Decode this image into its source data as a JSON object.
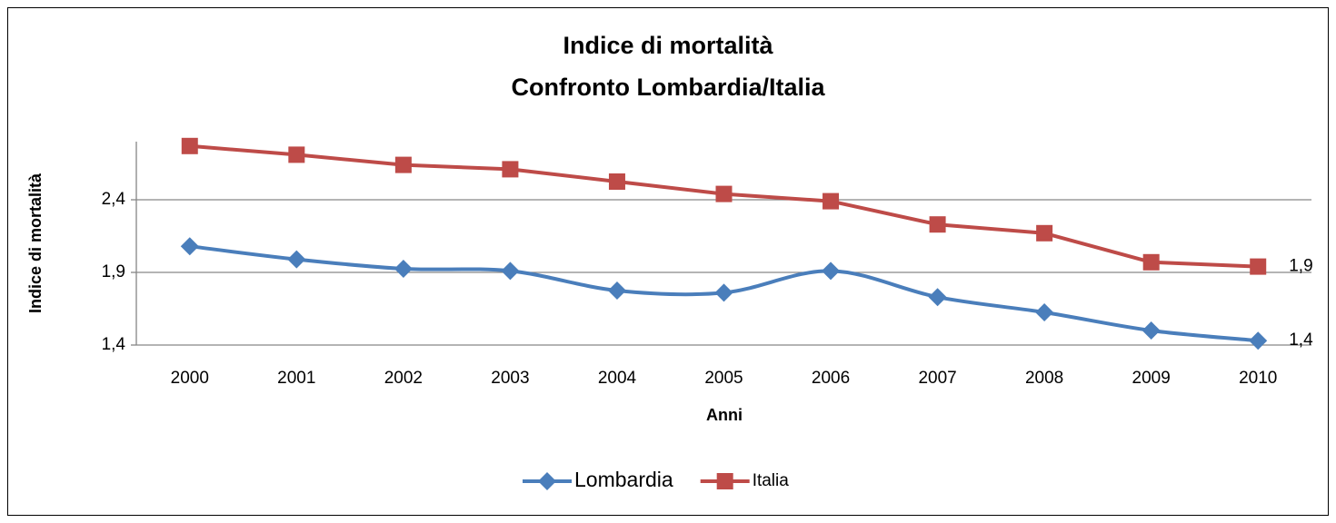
{
  "chart_data": {
    "type": "line",
    "title": "Indice di mortalità",
    "subtitle": "Confronto Lombardia/Italia",
    "x_label": "Anni",
    "y_label": "Indice di mortalità",
    "categories": [
      "2000",
      "2001",
      "2002",
      "2003",
      "2004",
      "2005",
      "2006",
      "2007",
      "2008",
      "2009",
      "2010"
    ],
    "series": [
      {
        "name": "Lombardia",
        "color": "#4a7ebb",
        "marker": "diamond",
        "smooth": true,
        "values": [
          2.08,
          1.99,
          1.925,
          1.91,
          1.775,
          1.76,
          1.91,
          1.73,
          1.625,
          1.5,
          1.43
        ],
        "value_labels": [
          null,
          null,
          null,
          null,
          null,
          null,
          null,
          null,
          null,
          null,
          "1,4"
        ]
      },
      {
        "name": "Italia",
        "color": "#be4b48",
        "marker": "square",
        "smooth": false,
        "values": [
          2.77,
          2.71,
          2.64,
          2.61,
          2.525,
          2.44,
          2.39,
          2.23,
          2.17,
          1.97,
          1.94
        ],
        "value_labels": [
          null,
          null,
          null,
          null,
          null,
          null,
          null,
          null,
          null,
          null,
          "1,9"
        ]
      }
    ],
    "ylim": [
      1.4,
      2.8
    ],
    "yticks": [
      {
        "value": 1.4,
        "label": "1,4"
      },
      {
        "value": 1.9,
        "label": "1,9"
      },
      {
        "value": 2.4,
        "label": "2,4"
      }
    ],
    "grid": true,
    "legend": "bottom"
  }
}
